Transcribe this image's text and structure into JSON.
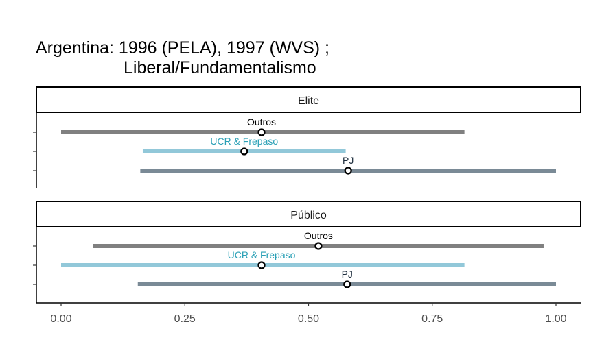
{
  "title_line1": "Argentina: 1996 (PELA), 1997 (WVS) ;",
  "title_line2": "Liberal/Fundamentalismo",
  "chart_data": {
    "type": "interval",
    "xlim": [
      -0.05,
      1.05
    ],
    "x_ticks": [
      0,
      0.25,
      0.5,
      0.75,
      1
    ],
    "x_tick_labels": [
      "0.00",
      "0.25",
      "0.50",
      "0.75",
      "1.00"
    ],
    "grid": false,
    "panels": [
      {
        "strip": "Elite",
        "series": [
          {
            "name": "Outros",
            "low": 0.0,
            "high": 0.815,
            "point": 0.405,
            "color": "#808080",
            "label_color": "#000000"
          },
          {
            "name": "UCR & Frepaso",
            "low": 0.165,
            "high": 0.575,
            "point": 0.37,
            "color": "#92c8d9",
            "label_color": "#2aa0b6"
          },
          {
            "name": "PJ",
            "low": 0.16,
            "high": 1.0,
            "point": 0.58,
            "color": "#7a8a96",
            "label_color": "#1c2c3c"
          }
        ]
      },
      {
        "strip": "Público",
        "series": [
          {
            "name": "Outros",
            "low": 0.065,
            "high": 0.975,
            "point": 0.52,
            "color": "#808080",
            "label_color": "#000000"
          },
          {
            "name": "UCR & Frepaso",
            "low": 0.0,
            "high": 0.815,
            "point": 0.405,
            "color": "#92c8d9",
            "label_color": "#2aa0b6"
          },
          {
            "name": "PJ",
            "low": 0.155,
            "high": 1.0,
            "point": 0.578,
            "color": "#7a8a96",
            "label_color": "#1c2c3c"
          }
        ]
      }
    ]
  }
}
